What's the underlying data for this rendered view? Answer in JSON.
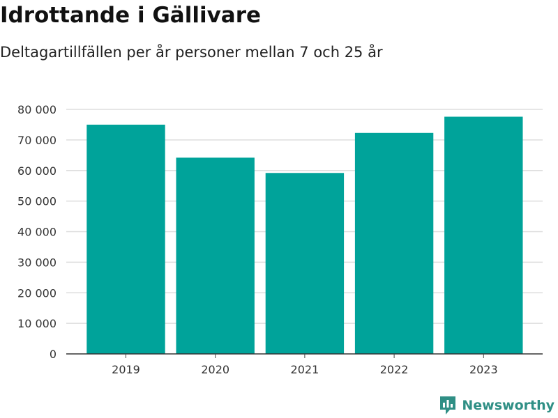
{
  "chart_data": {
    "type": "bar",
    "title": "Idrottande i Gällivare",
    "subtitle": "Deltagartillfällen per år personer mellan 7 och 25 år",
    "xlabel": "",
    "ylabel": "",
    "categories": [
      "2019",
      "2020",
      "2021",
      "2022",
      "2023"
    ],
    "values": [
      75000,
      64200,
      59200,
      72300,
      77600
    ],
    "ylim": [
      0,
      80000
    ],
    "yticks": [
      0,
      10000,
      20000,
      30000,
      40000,
      50000,
      60000,
      70000,
      80000
    ],
    "ytick_labels": [
      "0",
      "10 000",
      "20 000",
      "30 000",
      "40 000",
      "50 000",
      "60 000",
      "70 000",
      "80 000"
    ],
    "bar_color": "#00a39a",
    "grid": true,
    "legend": "none"
  },
  "brand": {
    "name": "Newsworthy",
    "icon": "newsworthy-logo-icon",
    "color": "#2f8f85"
  }
}
